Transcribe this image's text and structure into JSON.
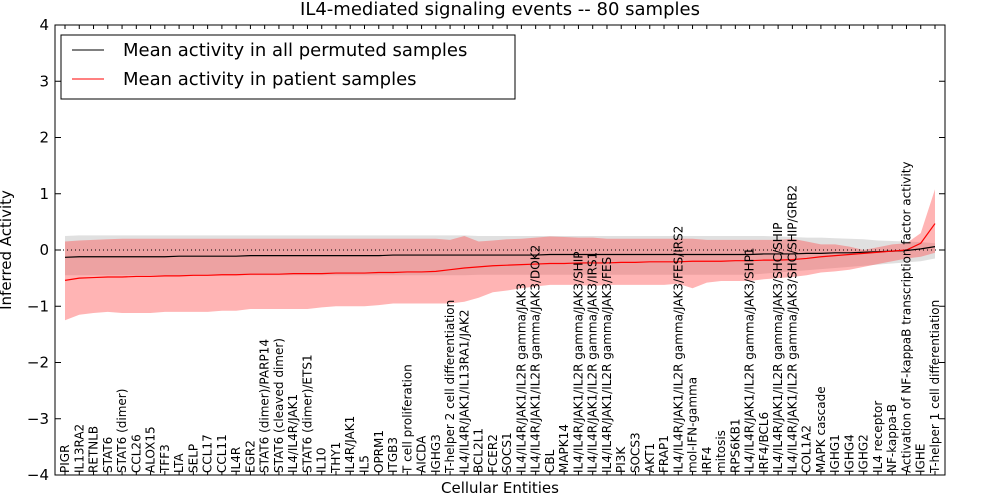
{
  "chart_data": {
    "type": "line",
    "title": "IL4-mediated signaling events -- 80 samples",
    "xlabel": "Cellular Entities",
    "ylabel": "Inferred Activity",
    "ylim": [
      -4,
      4
    ],
    "yticks": [
      -4,
      -3,
      -2,
      -1,
      0,
      1,
      2,
      3,
      4
    ],
    "reference_line": 0,
    "legend": {
      "position": "top-left",
      "entries": [
        {
          "label": "Mean activity in all permuted samples",
          "color": "#000000"
        },
        {
          "label": "Mean activity in patient samples",
          "color": "#ff0000"
        }
      ]
    },
    "categories": [
      "PIGR",
      "IL13RA2",
      "RETNLB",
      "STAT6",
      "STAT6 (dimer)",
      "CCL26",
      "ALOX15",
      "TFF3",
      "LTA",
      "SELP",
      "CCL17",
      "CCL11",
      "IL4R",
      "EGR2",
      "STAT6 (dimer)/PARP14",
      "STAT6 (cleaved dimer)",
      "IL4/IL4R/JAK1",
      "STAT6 (dimer)/ETS1",
      "IL10",
      "THY1",
      "IL4R/JAK1",
      "IL5",
      "OPRM1",
      "ITGB3",
      "T cell proliferation",
      "AICDA",
      "IGHG3",
      "T-helper 2 cell differentiation",
      "IL4/IL4R/JAK1/IL13RA1/JAK2",
      "BCL2L1",
      "FCER2",
      "SOCS1",
      "IL4/IL4R/JAK1/IL2R gamma/JAK3",
      "IL4/IL4R/JAK1/IL2R gamma/JAK3/DOK2",
      "CBL",
      "MAPK14",
      "IL4/IL4R/JAK1/IL2R gamma/JAK3/SHIP",
      "IL4/IL4R/JAK1/IL2R gamma/JAK3/IRS1",
      "IL4/IL4R/JAK1/IL2R gamma/JAK3/FES",
      "PI3K",
      "SOCS3",
      "AKT1",
      "FRAP1",
      "IL4/IL4R/JAK1/IL2R gamma/JAK3/FES/IRS2",
      "mol-IFN-gamma",
      "IRF4",
      "mitosis",
      "RPS6KB1",
      "IL4/IL4R/JAK1/IL2R gamma/JAK3/SHP1",
      "IRF4/BCL6",
      "IL4/IL4R/JAK1/IL2R gamma/JAK3/SHC/SHIP",
      "IL4/IL4R/JAK1/IL2R gamma/JAK3/SHC/SHIP/GRB2",
      "COL1A2",
      "MAPK cascade",
      "IGHG1",
      "IGHG4",
      "IGHG2",
      "IL4 receptor",
      "NF-kappa-B",
      "Activation of NF-kappaB transcription factor activity",
      "IGHE",
      "T-helper 1 cell differentiation"
    ],
    "series": [
      {
        "name": "Mean activity in all permuted samples",
        "color": "#000000",
        "values": [
          -0.13,
          -0.12,
          -0.12,
          -0.12,
          -0.12,
          -0.12,
          -0.12,
          -0.12,
          -0.11,
          -0.11,
          -0.11,
          -0.11,
          -0.11,
          -0.1,
          -0.1,
          -0.1,
          -0.1,
          -0.1,
          -0.1,
          -0.1,
          -0.1,
          -0.1,
          -0.1,
          -0.09,
          -0.09,
          -0.09,
          -0.09,
          -0.09,
          -0.09,
          -0.09,
          -0.09,
          -0.09,
          -0.09,
          -0.09,
          -0.08,
          -0.08,
          -0.08,
          -0.08,
          -0.08,
          -0.08,
          -0.08,
          -0.08,
          -0.08,
          -0.08,
          -0.08,
          -0.08,
          -0.08,
          -0.08,
          -0.08,
          -0.07,
          -0.07,
          -0.07,
          -0.06,
          -0.06,
          -0.05,
          -0.05,
          -0.04,
          -0.03,
          -0.02,
          -0.01,
          0.02,
          0.06
        ],
        "upper": [
          0.25,
          0.26,
          0.26,
          0.26,
          0.26,
          0.26,
          0.26,
          0.26,
          0.26,
          0.26,
          0.26,
          0.26,
          0.26,
          0.26,
          0.26,
          0.26,
          0.26,
          0.26,
          0.26,
          0.26,
          0.26,
          0.26,
          0.26,
          0.26,
          0.26,
          0.26,
          0.26,
          0.26,
          0.26,
          0.25,
          0.25,
          0.25,
          0.25,
          0.25,
          0.25,
          0.25,
          0.25,
          0.25,
          0.25,
          0.25,
          0.25,
          0.25,
          0.25,
          0.25,
          0.25,
          0.25,
          0.25,
          0.25,
          0.25,
          0.25,
          0.24,
          0.23,
          0.22,
          0.22,
          0.21,
          0.2,
          0.19,
          0.17,
          0.16,
          0.15,
          0.14,
          0.12
        ],
        "lower": [
          -0.45,
          -0.45,
          -0.45,
          -0.45,
          -0.45,
          -0.45,
          -0.45,
          -0.45,
          -0.45,
          -0.45,
          -0.45,
          -0.45,
          -0.45,
          -0.45,
          -0.45,
          -0.45,
          -0.45,
          -0.45,
          -0.45,
          -0.45,
          -0.45,
          -0.45,
          -0.45,
          -0.45,
          -0.45,
          -0.45,
          -0.45,
          -0.45,
          -0.45,
          -0.44,
          -0.44,
          -0.44,
          -0.44,
          -0.44,
          -0.44,
          -0.44,
          -0.44,
          -0.44,
          -0.44,
          -0.44,
          -0.44,
          -0.44,
          -0.44,
          -0.44,
          -0.44,
          -0.44,
          -0.44,
          -0.44,
          -0.44,
          -0.42,
          -0.4,
          -0.38,
          -0.36,
          -0.34,
          -0.32,
          -0.3,
          -0.28,
          -0.26,
          -0.24,
          -0.22,
          -0.2,
          -0.15
        ]
      },
      {
        "name": "Mean activity in patient samples",
        "color": "#ff0000",
        "values": [
          -0.54,
          -0.5,
          -0.49,
          -0.48,
          -0.48,
          -0.47,
          -0.47,
          -0.46,
          -0.46,
          -0.45,
          -0.45,
          -0.44,
          -0.44,
          -0.43,
          -0.43,
          -0.43,
          -0.42,
          -0.42,
          -0.42,
          -0.41,
          -0.41,
          -0.41,
          -0.4,
          -0.4,
          -0.39,
          -0.39,
          -0.38,
          -0.35,
          -0.32,
          -0.3,
          -0.28,
          -0.27,
          -0.26,
          -0.25,
          -0.24,
          -0.24,
          -0.23,
          -0.23,
          -0.23,
          -0.22,
          -0.22,
          -0.21,
          -0.21,
          -0.21,
          -0.2,
          -0.2,
          -0.2,
          -0.19,
          -0.19,
          -0.18,
          -0.18,
          -0.17,
          -0.15,
          -0.12,
          -0.1,
          -0.08,
          -0.06,
          -0.04,
          -0.02,
          0.0,
          0.12,
          0.47
        ],
        "upper": [
          0.15,
          0.17,
          0.18,
          0.19,
          0.2,
          0.2,
          0.2,
          0.2,
          0.2,
          0.2,
          0.2,
          0.2,
          0.2,
          0.2,
          0.2,
          0.2,
          0.2,
          0.2,
          0.2,
          0.2,
          0.2,
          0.2,
          0.2,
          0.2,
          0.2,
          0.2,
          0.2,
          0.18,
          0.25,
          0.15,
          0.17,
          0.19,
          0.2,
          0.22,
          0.24,
          0.23,
          0.22,
          0.22,
          0.2,
          0.2,
          0.2,
          0.2,
          0.2,
          0.2,
          0.2,
          0.18,
          0.18,
          0.18,
          0.18,
          0.18,
          0.18,
          0.2,
          0.15,
          0.1,
          0.1,
          0.06,
          0.0,
          0.05,
          0.1,
          0.12,
          0.3,
          1.08
        ],
        "lower": [
          -1.25,
          -1.15,
          -1.12,
          -1.1,
          -1.12,
          -1.12,
          -1.12,
          -1.1,
          -1.1,
          -1.1,
          -1.1,
          -1.08,
          -1.08,
          -1.05,
          -1.05,
          -1.05,
          -1.05,
          -1.05,
          -1.02,
          -1.0,
          -1.0,
          -1.0,
          -0.98,
          -0.95,
          -0.95,
          -0.95,
          -0.95,
          -0.95,
          -0.92,
          -0.85,
          -0.75,
          -0.72,
          -0.68,
          -0.65,
          -0.62,
          -0.62,
          -0.62,
          -0.64,
          -0.62,
          -0.62,
          -0.62,
          -0.62,
          -0.62,
          -0.6,
          -0.68,
          -0.58,
          -0.55,
          -0.55,
          -0.55,
          -0.52,
          -0.5,
          -0.48,
          -0.45,
          -0.4,
          -0.38,
          -0.35,
          -0.3,
          -0.25,
          -0.2,
          -0.15,
          -0.12,
          -0.05
        ]
      }
    ]
  }
}
